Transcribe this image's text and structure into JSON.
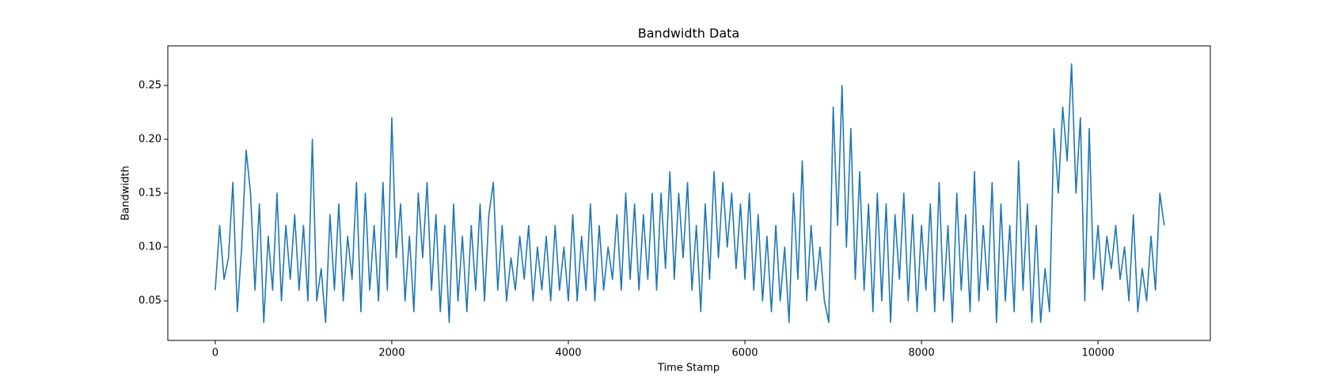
{
  "chart_data": {
    "type": "line",
    "title": "Bandwidth Data",
    "x_label": "Time Stamp",
    "y_label": "Bandwidth",
    "color": "#1f77b4",
    "xlim": [
      -537,
      11272
    ],
    "ylim": [
      0.0133,
      0.2867
    ],
    "xticks": [
      0,
      2000,
      4000,
      6000,
      8000,
      10000
    ],
    "yticks": [
      0.05,
      {
        "value": 0.1,
        "label": "0.10"
      },
      0.15,
      {
        "value": 0.2,
        "label": "0.20"
      },
      0.25
    ],
    "x": [
      0,
      50,
      100,
      150,
      200,
      250,
      300,
      350,
      400,
      450,
      500,
      550,
      600,
      650,
      700,
      750,
      800,
      850,
      900,
      950,
      1000,
      1050,
      1100,
      1150,
      1200,
      1250,
      1300,
      1350,
      1400,
      1450,
      1500,
      1550,
      1600,
      1650,
      1700,
      1750,
      1800,
      1850,
      1900,
      1950,
      2000,
      2050,
      2100,
      2150,
      2200,
      2250,
      2300,
      2350,
      2400,
      2450,
      2500,
      2550,
      2600,
      2650,
      2700,
      2750,
      2800,
      2850,
      2900,
      2950,
      3000,
      3050,
      3100,
      3150,
      3200,
      3250,
      3300,
      3350,
      3400,
      3450,
      3500,
      3550,
      3600,
      3650,
      3700,
      3750,
      3800,
      3850,
      3900,
      3950,
      4000,
      4050,
      4100,
      4150,
      4200,
      4250,
      4300,
      4350,
      4400,
      4450,
      4500,
      4550,
      4600,
      4650,
      4700,
      4750,
      4800,
      4850,
      4900,
      4950,
      5000,
      5050,
      5100,
      5150,
      5200,
      5250,
      5300,
      5350,
      5400,
      5450,
      5500,
      5550,
      5600,
      5650,
      5700,
      5750,
      5800,
      5850,
      5900,
      5950,
      6000,
      6050,
      6100,
      6150,
      6200,
      6250,
      6300,
      6350,
      6400,
      6450,
      6500,
      6550,
      6600,
      6650,
      6700,
      6750,
      6800,
      6850,
      6900,
      6950,
      7000,
      7050,
      7100,
      7150,
      7200,
      7250,
      7300,
      7350,
      7400,
      7450,
      7500,
      7550,
      7600,
      7650,
      7700,
      7750,
      7800,
      7850,
      7900,
      7950,
      8000,
      8050,
      8100,
      8150,
      8200,
      8250,
      8300,
      8350,
      8400,
      8450,
      8500,
      8550,
      8600,
      8650,
      8700,
      8750,
      8800,
      8850,
      8900,
      8950,
      9000,
      9050,
      9100,
      9150,
      9200,
      9250,
      9300,
      9350,
      9400,
      9450,
      9500,
      9550,
      9600,
      9650,
      9700,
      9750,
      9800,
      9850,
      9900,
      9950,
      10000,
      10050,
      10100,
      10150,
      10200,
      10250,
      10300,
      10350,
      10400,
      10450,
      10500,
      10550,
      10600,
      10650,
      10700,
      10750
    ],
    "values": [
      0.06,
      0.12,
      0.07,
      0.09,
      0.16,
      0.04,
      0.1,
      0.19,
      0.15,
      0.06,
      0.14,
      0.03,
      0.11,
      0.06,
      0.15,
      0.05,
      0.12,
      0.07,
      0.13,
      0.06,
      0.12,
      0.05,
      0.2,
      0.05,
      0.08,
      0.03,
      0.13,
      0.06,
      0.14,
      0.05,
      0.11,
      0.07,
      0.16,
      0.04,
      0.15,
      0.06,
      0.12,
      0.05,
      0.16,
      0.06,
      0.22,
      0.09,
      0.14,
      0.05,
      0.11,
      0.04,
      0.15,
      0.09,
      0.16,
      0.06,
      0.13,
      0.04,
      0.12,
      0.03,
      0.14,
      0.05,
      0.11,
      0.04,
      0.12,
      0.06,
      0.14,
      0.05,
      0.13,
      0.16,
      0.06,
      0.12,
      0.05,
      0.09,
      0.06,
      0.11,
      0.07,
      0.12,
      0.05,
      0.1,
      0.06,
      0.11,
      0.05,
      0.12,
      0.06,
      0.1,
      0.05,
      0.13,
      0.05,
      0.11,
      0.06,
      0.14,
      0.05,
      0.12,
      0.06,
      0.1,
      0.07,
      0.13,
      0.06,
      0.15,
      0.07,
      0.14,
      0.06,
      0.13,
      0.07,
      0.15,
      0.06,
      0.15,
      0.08,
      0.17,
      0.07,
      0.15,
      0.09,
      0.16,
      0.06,
      0.12,
      0.04,
      0.14,
      0.07,
      0.17,
      0.09,
      0.16,
      0.1,
      0.15,
      0.08,
      0.14,
      0.07,
      0.15,
      0.06,
      0.13,
      0.05,
      0.11,
      0.04,
      0.12,
      0.05,
      0.1,
      0.03,
      0.15,
      0.07,
      0.18,
      0.05,
      0.12,
      0.06,
      0.1,
      0.05,
      0.03,
      0.23,
      0.12,
      0.25,
      0.1,
      0.21,
      0.07,
      0.17,
      0.06,
      0.14,
      0.04,
      0.15,
      0.05,
      0.14,
      0.03,
      0.13,
      0.07,
      0.15,
      0.05,
      0.13,
      0.04,
      0.12,
      0.06,
      0.14,
      0.04,
      0.16,
      0.05,
      0.12,
      0.03,
      0.15,
      0.06,
      0.13,
      0.04,
      0.17,
      0.05,
      0.12,
      0.06,
      0.16,
      0.03,
      0.14,
      0.05,
      0.12,
      0.04,
      0.18,
      0.06,
      0.14,
      0.03,
      0.12,
      0.03,
      0.08,
      0.04,
      0.21,
      0.15,
      0.23,
      0.18,
      0.27,
      0.15,
      0.22,
      0.05,
      0.21,
      0.07,
      0.12,
      0.06,
      0.11,
      0.08,
      0.12,
      0.07,
      0.1,
      0.05,
      0.13,
      0.04,
      0.08,
      0.05,
      0.11,
      0.06,
      0.15,
      0.12
    ]
  }
}
